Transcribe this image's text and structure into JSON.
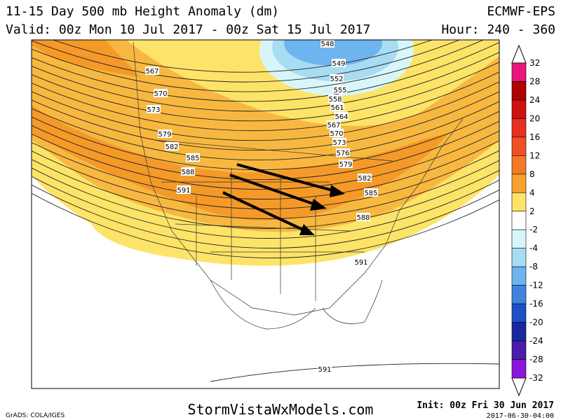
{
  "header": {
    "title": "11-15 Day 500 mb Height Anomaly (dm)",
    "valid": "Valid: 00z Mon 10 Jul 2017 - 00z Sat 15 Jul 2017",
    "model": "ECMWF-EPS",
    "hour": "Hour: 240 - 360"
  },
  "contour_labels": [
    "548",
    "549",
    "552",
    "555",
    "558",
    "561",
    "564",
    "567",
    "567",
    "570",
    "570",
    "573",
    "573",
    "576",
    "579",
    "579",
    "582",
    "582",
    "585",
    "585",
    "588",
    "588",
    "591",
    "591",
    "591"
  ],
  "colorbar": {
    "labels": [
      "32",
      "28",
      "24",
      "20",
      "16",
      "12",
      "8",
      "4",
      "2",
      "-2",
      "-4",
      "-8",
      "-12",
      "-16",
      "-20",
      "-24",
      "-28",
      "-32"
    ],
    "colors": [
      "#e8157f",
      "#b00000",
      "#d01010",
      "#e83020",
      "#f05028",
      "#f47a28",
      "#f8a030",
      "#fde468",
      "#ffffff",
      "#d8f6fa",
      "#a8dcf2",
      "#6eb4ee",
      "#3f82e0",
      "#2050c8",
      "#1a28a0",
      "#4a1ca8",
      "#8a18d8"
    ]
  },
  "footer": {
    "credit": "GrADS: COLA/IGES",
    "site": "StormVistaWxModels.com",
    "init": "Init: 00z Fri 30 Jun 2017",
    "stamp": "2017-06-30-04:00"
  }
}
